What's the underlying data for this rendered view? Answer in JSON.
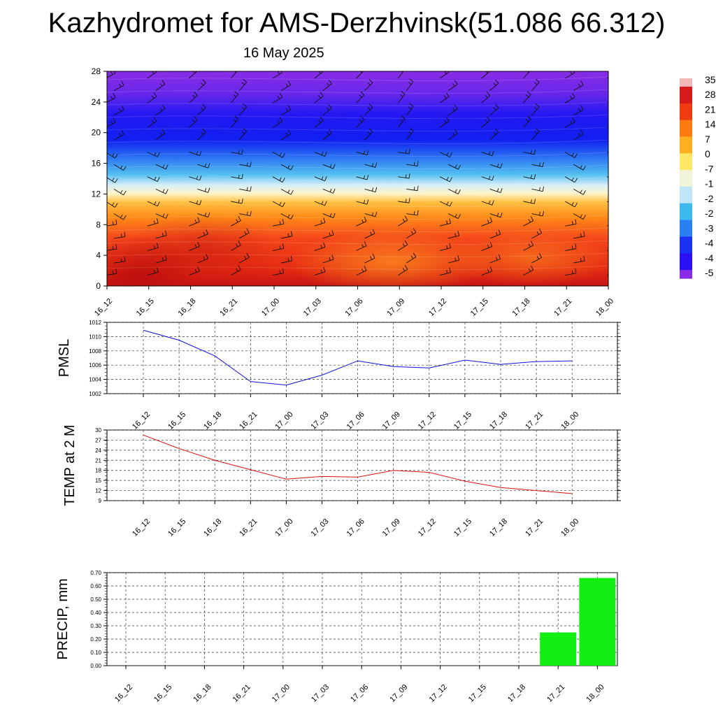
{
  "title": "Kazhydromet for AMS-Derzhvinsk(51.086 66.312)",
  "subtitle": "16 May 2025",
  "x_categories": [
    "16_12",
    "16_15",
    "16_18",
    "16_21",
    "17_00",
    "17_03",
    "17_06",
    "17_09",
    "17_12",
    "17_15",
    "17_18",
    "17_21",
    "18_00"
  ],
  "colors": {
    "pmsl_line": "#1010dd",
    "temp_line": "#dd1111",
    "precip_bar": "#11ee11"
  },
  "chart_data": [
    {
      "type": "heatmap",
      "id": "cross-section",
      "ylim": [
        0,
        28
      ],
      "yticks": [
        "0",
        "4",
        "8",
        "12",
        "16",
        "20",
        "24",
        "28"
      ],
      "colorbar_labels": [
        "35",
        "28",
        "21",
        "14",
        "7",
        "0",
        "-7",
        "-1",
        "-2",
        "-2",
        "-3",
        "-4",
        "-4",
        "-5"
      ],
      "colorbar_stops": [
        {
          "v": 35,
          "c": "#f2b8b8"
        },
        {
          "v": 28,
          "c": "#d61a1a"
        },
        {
          "v": 20,
          "c": "#f03a12"
        },
        {
          "v": 10,
          "c": "#ff7a10"
        },
        {
          "v": 0,
          "c": "#ffb020"
        },
        {
          "v": -7,
          "c": "#ffe866"
        },
        {
          "v": -12,
          "c": "#f2f4d8"
        },
        {
          "v": -16,
          "c": "#bfe6f8"
        },
        {
          "v": -22,
          "c": "#3cb8ee"
        },
        {
          "v": -30,
          "c": "#2a7ff0"
        },
        {
          "v": -40,
          "c": "#1c32f2"
        },
        {
          "v": -50,
          "c": "#2a10f4"
        },
        {
          "v": -58,
          "c": "#8a2ae6"
        }
      ],
      "wind_barbs": true
    },
    {
      "type": "line",
      "id": "pmsl",
      "ylabel": "PMSL",
      "ylim": [
        1002,
        1012
      ],
      "yticks": [
        "1002",
        "1004",
        "1006",
        "1008",
        "1010",
        "1012"
      ],
      "series": [
        {
          "values": [
            1010.9,
            1009.5,
            1007.3,
            1003.7,
            1003.2,
            1004.6,
            1006.6,
            1005.8,
            1005.6,
            1006.7,
            1006.1,
            1006.5,
            1006.6
          ]
        }
      ]
    },
    {
      "type": "line",
      "id": "temp",
      "ylabel": "TEMP at 2 M",
      "ylim": [
        9,
        30
      ],
      "yticks": [
        "9",
        "12",
        "15",
        "18",
        "21",
        "24",
        "27",
        "30"
      ],
      "series": [
        {
          "values": [
            28.5,
            24.5,
            21.0,
            18.2,
            15.4,
            16.2,
            16.0,
            18.0,
            17.4,
            14.8,
            12.9,
            12.0,
            11.1
          ]
        }
      ]
    },
    {
      "type": "bar",
      "id": "precip",
      "ylabel": "PRECIP, mm",
      "ylim": [
        0,
        0.7
      ],
      "yticks": [
        "0.00",
        "0.10",
        "0.20",
        "0.30",
        "0.40",
        "0.50",
        "0.60",
        "0.70"
      ],
      "values": [
        0,
        0,
        0,
        0,
        0,
        0,
        0,
        0,
        0,
        0,
        0,
        0.25,
        0.66
      ]
    }
  ]
}
